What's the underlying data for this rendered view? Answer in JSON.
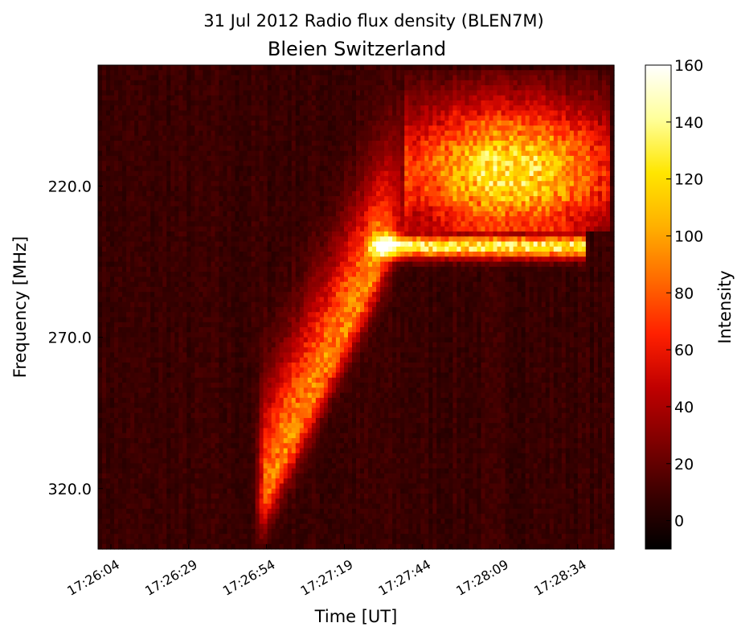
{
  "chart_data": {
    "type": "heatmap",
    "title": "31 Jul 2012 Radio flux density (BLEN7M)",
    "subtitle": "Bleien Switzerland",
    "xlabel": "Time [UT]",
    "ylabel": "Frequency [MHz]",
    "colorbar_label": "Intensity",
    "x_ticks": [
      "17:26:04",
      "17:26:29",
      "17:26:54",
      "17:27:19",
      "17:27:44",
      "17:28:09",
      "17:28:34"
    ],
    "y_ticks": [
      "220.0",
      "270.0",
      "320.0"
    ],
    "y_tick_values": [
      220,
      270,
      320
    ],
    "ylim": [
      340,
      180
    ],
    "colorbar_ticks": [
      "160",
      "140",
      "120",
      "100",
      "80",
      "60",
      "40",
      "20",
      "0"
    ],
    "colorbar_tick_values": [
      160,
      140,
      120,
      100,
      80,
      60,
      40,
      20,
      0
    ],
    "clim": [
      -10,
      160
    ],
    "colormap": "hot",
    "colormap_stops": [
      "#000000",
      "#3a0000",
      "#800000",
      "#c00000",
      "#ff2000",
      "#ff6a00",
      "#ffb000",
      "#ffe600",
      "#ffff9a",
      "#ffffff"
    ],
    "features": [
      {
        "name": "drifting burst",
        "t_start": "17:26:54",
        "t_end": "17:27:30",
        "freq_start_mhz": 320,
        "freq_end_mhz": 245,
        "peak_intensity": 90
      },
      {
        "name": "bright band",
        "t_start": "17:27:25",
        "t_end": "17:28:34",
        "freq_mhz": 240,
        "peak_intensity": 140
      },
      {
        "name": "upper emission patch",
        "t_start": "17:27:44",
        "t_end": "17:28:40",
        "freq_range_mhz": [
          190,
          235
        ],
        "peak_intensity": 130
      }
    ]
  }
}
